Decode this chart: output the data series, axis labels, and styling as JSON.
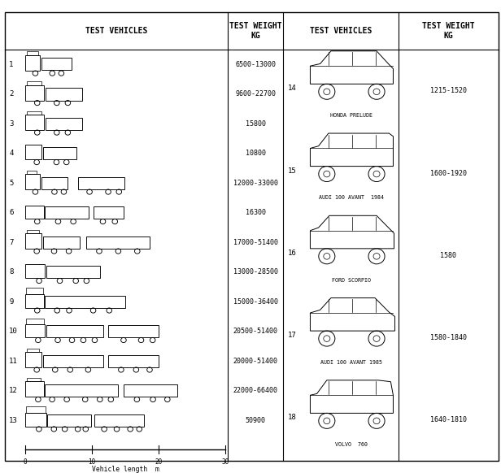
{
  "col_headers": [
    "TEST VEHICLES",
    "TEST WEIGHT\nKG",
    "TEST VEHICLES",
    "TEST WEIGHT\nKG"
  ],
  "truck_entries": [
    {
      "num": "1",
      "weight": "6500-13000",
      "type": "small_truck_box"
    },
    {
      "num": "2",
      "weight": "9600-22700",
      "type": "cab_trailer_medium"
    },
    {
      "num": "3",
      "weight": "15800",
      "type": "cab_trailer_medium"
    },
    {
      "num": "4",
      "weight": "10800",
      "type": "box_truck_short"
    },
    {
      "num": "5",
      "weight": "12000-33000",
      "type": "tractor_semitrailer_small"
    },
    {
      "num": "6",
      "weight": "16300",
      "type": "cab_long_trailer"
    },
    {
      "num": "7",
      "weight": "17000-51400",
      "type": "cab_trailer_long2"
    },
    {
      "num": "8",
      "weight": "13000-28500",
      "type": "box_semitrailer"
    },
    {
      "num": "9",
      "weight": "15000-36400",
      "type": "tractor_long_trailer"
    },
    {
      "num": "10",
      "weight": "20500-51400",
      "type": "cab_2trailer"
    },
    {
      "num": "11",
      "weight": "20000-51400",
      "type": "tractor_2trailer"
    },
    {
      "num": "12",
      "weight": "22000-66400",
      "type": "big_tractor_2trailer"
    },
    {
      "num": "13",
      "weight": "50900",
      "type": "tractor_semitrailer_long"
    }
  ],
  "car_entries": [
    {
      "num": "14",
      "name": "HONDA PRELUDE",
      "weight": "1215-1520",
      "style": "coupe"
    },
    {
      "num": "15",
      "name": "AUDI 100 AVANT  1984",
      "weight": "1600-1920",
      "style": "wagon"
    },
    {
      "num": "16",
      "name": "FORD SCORPIO",
      "weight": "1580",
      "style": "sedan"
    },
    {
      "num": "17",
      "name": "AUDI 100 AVANT 1985",
      "weight": "1580-1840",
      "style": "sedan_low"
    },
    {
      "num": "18",
      "name": "VOLVO  760",
      "weight": "1640-1810",
      "style": "sedan_sq"
    }
  ],
  "axis_ticks": [
    0,
    10,
    20,
    30
  ],
  "axis_label": "Vehicle length  m",
  "bg_color": "#ffffff",
  "line_color": "#000000",
  "text_color": "#000000"
}
